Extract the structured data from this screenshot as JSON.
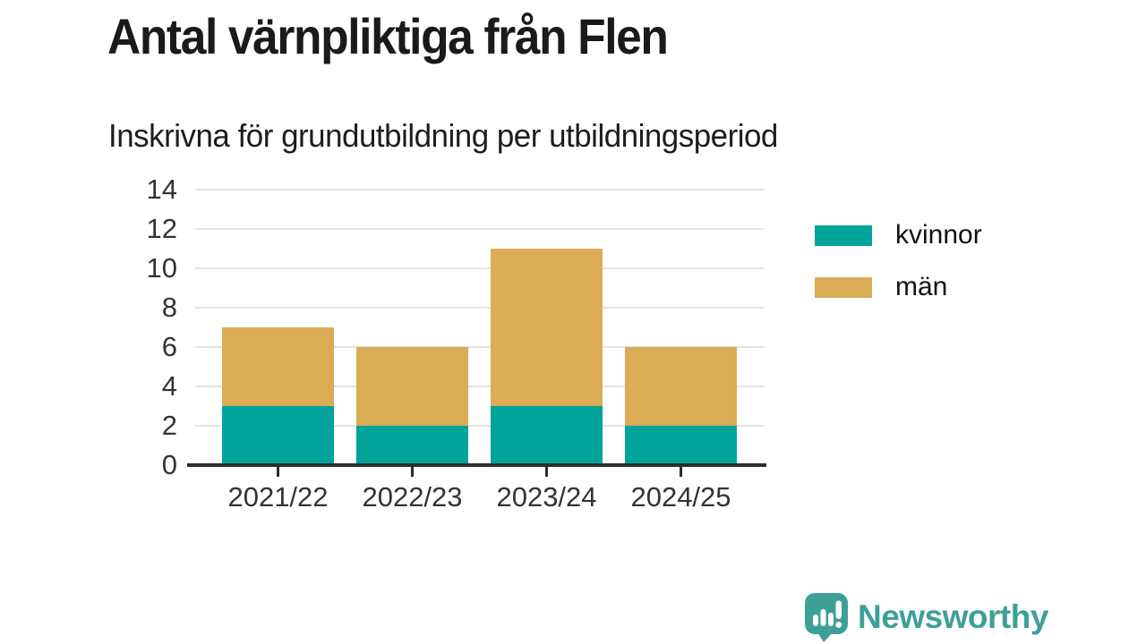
{
  "header": {
    "title": "Antal värnpliktiga från Flen",
    "subtitle": "Inskrivna för grundutbildning per utbildningsperiod"
  },
  "chart_data": {
    "type": "bar",
    "stacked": true,
    "title": "Antal värnpliktiga från Flen",
    "subtitle": "Inskrivna för grundutbildning per utbildningsperiod",
    "categories": [
      "2021/22",
      "2022/23",
      "2023/24",
      "2024/25"
    ],
    "series": [
      {
        "name": "kvinnor",
        "color": "#00A49B",
        "values": [
          3,
          2,
          3,
          2
        ]
      },
      {
        "name": "män",
        "color": "#D9AC55",
        "values": [
          4,
          4,
          8,
          4
        ]
      }
    ],
    "stack_totals": [
      7,
      6,
      11,
      6
    ],
    "xlabel": "",
    "ylabel": "",
    "ylim": [
      0,
      14
    ],
    "yticks": [
      0,
      2,
      4,
      6,
      8,
      10,
      12,
      14
    ],
    "grid": true,
    "legend_position": "right"
  },
  "colors": {
    "background": "#ffffff",
    "axis_line": "#2d2d2d",
    "gridline": "#e3e3e3",
    "tick_label": "#333333",
    "title_text": "#1a1a1a",
    "series_kvinnor": "#00A49B",
    "series_man": "#D9AC55",
    "brand_teal": "#3E9F99"
  },
  "branding": {
    "name": "Newsworthy",
    "color": "#3E9F99",
    "icon": "newsworthy-speech-bubble-barchart-icon"
  }
}
